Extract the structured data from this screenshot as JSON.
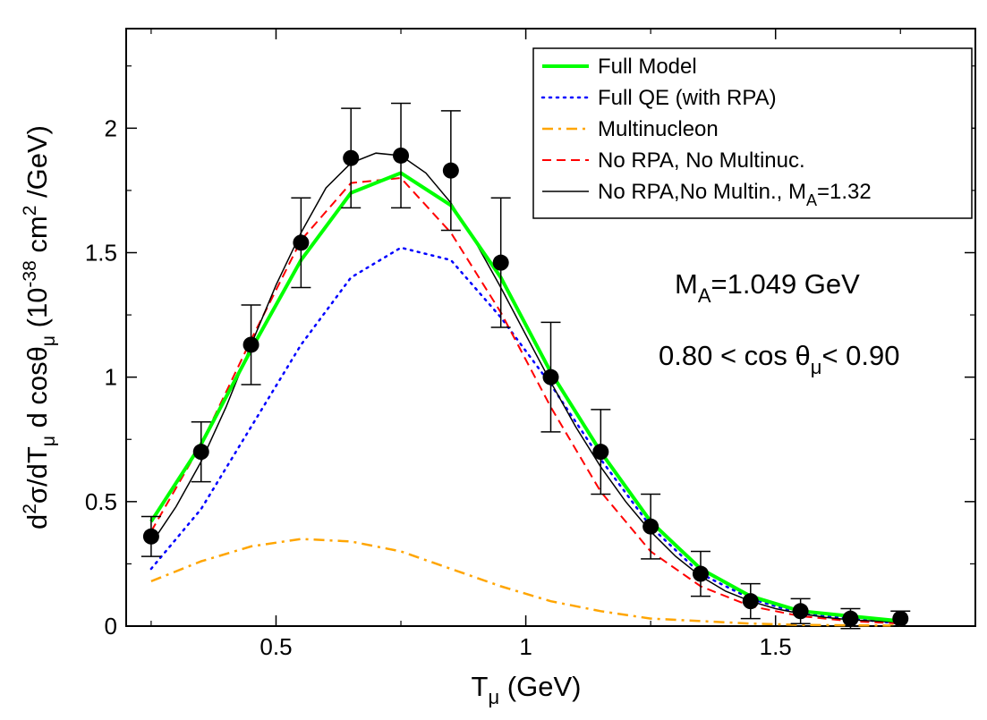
{
  "chart_data": {
    "type": "line",
    "xlabel_main": "T",
    "xlabel_sub": "μ",
    "xlabel_rest": " (GeV)",
    "ylabel": {
      "p1": "d",
      "p1sup": "2",
      "p2": "σ/dT",
      "p2sub": "μ",
      "p3": " d cosθ",
      "p3sub": "μ",
      "p4": " (10",
      "p4sup": "-38",
      "p5": " cm",
      "p5sup": "2",
      "p6": " /GeV)"
    },
    "xlim": [
      0.2,
      1.9
    ],
    "ylim": [
      0,
      2.4
    ],
    "xticks": [
      0.5,
      1,
      1.5
    ],
    "xtick_labels": [
      "0.5",
      "1",
      "1.5"
    ],
    "yticks": [
      0,
      0.5,
      1,
      1.5,
      2
    ],
    "ytick_labels": [
      "0",
      "0.5",
      "1",
      "1.5",
      "2"
    ],
    "grid": false,
    "legend_position": "top-right",
    "annotations": {
      "ma_main": "M",
      "ma_sub": "A",
      "ma_rest": "=1.049 GeV",
      "cos_main": "0.80 < cos θ",
      "cos_sub": "μ",
      "cos_rest": "< 0.90"
    },
    "data_points": {
      "x": [
        0.25,
        0.35,
        0.45,
        0.55,
        0.65,
        0.75,
        0.85,
        0.95,
        1.05,
        1.15,
        1.25,
        1.35,
        1.45,
        1.55,
        1.65,
        1.75
      ],
      "y": [
        0.36,
        0.7,
        1.13,
        1.54,
        1.88,
        1.89,
        1.83,
        1.46,
        1.0,
        0.7,
        0.4,
        0.21,
        0.1,
        0.06,
        0.03,
        0.03
      ],
      "err": [
        0.08,
        0.12,
        0.16,
        0.18,
        0.2,
        0.21,
        0.24,
        0.26,
        0.22,
        0.17,
        0.13,
        0.09,
        0.07,
        0.05,
        0.04,
        0.03
      ]
    },
    "series": [
      {
        "name": "Full Model",
        "color": "#00ff00",
        "style": "solid-thick",
        "x": [
          0.25,
          0.35,
          0.45,
          0.55,
          0.65,
          0.75,
          0.85,
          0.95,
          1.05,
          1.15,
          1.25,
          1.35,
          1.45,
          1.55,
          1.65,
          1.75
        ],
        "y": [
          0.42,
          0.73,
          1.11,
          1.47,
          1.74,
          1.82,
          1.69,
          1.4,
          1.02,
          0.7,
          0.42,
          0.23,
          0.12,
          0.06,
          0.04,
          0.02
        ]
      },
      {
        "name": "Full QE (with RPA)",
        "color": "#0000ff",
        "style": "dotted",
        "x": [
          0.25,
          0.35,
          0.45,
          0.55,
          0.65,
          0.75,
          0.85,
          0.95,
          1.05,
          1.15,
          1.25,
          1.35,
          1.45,
          1.55,
          1.65,
          1.75
        ],
        "y": [
          0.23,
          0.47,
          0.8,
          1.13,
          1.4,
          1.52,
          1.47,
          1.24,
          0.97,
          0.67,
          0.4,
          0.21,
          0.11,
          0.05,
          0.03,
          0.01
        ]
      },
      {
        "name": "Multinucleon",
        "color": "#ffa500",
        "style": "dashdot",
        "x": [
          0.25,
          0.35,
          0.45,
          0.55,
          0.65,
          0.75,
          0.85,
          0.95,
          1.05,
          1.15,
          1.25,
          1.35,
          1.45,
          1.55,
          1.65,
          1.75
        ],
        "y": [
          0.18,
          0.26,
          0.32,
          0.35,
          0.34,
          0.3,
          0.23,
          0.16,
          0.1,
          0.06,
          0.03,
          0.02,
          0.01,
          0.005,
          0.003,
          0.002
        ]
      },
      {
        "name": "No RPA, No Multinuc.",
        "color": "#ff0000",
        "style": "dashed",
        "x": [
          0.25,
          0.35,
          0.45,
          0.55,
          0.65,
          0.75,
          0.85,
          0.95,
          1.05,
          1.15,
          1.25,
          1.35,
          1.45,
          1.55,
          1.65,
          1.75
        ],
        "y": [
          0.38,
          0.73,
          1.15,
          1.55,
          1.78,
          1.8,
          1.58,
          1.26,
          0.88,
          0.54,
          0.3,
          0.16,
          0.08,
          0.04,
          0.02,
          0.01
        ]
      },
      {
        "name": "No RPA,No Multin., M",
        "name_sub": "A",
        "name_rest": "=1.32",
        "color": "#000000",
        "style": "solid-thin",
        "x": [
          0.25,
          0.3,
          0.35,
          0.4,
          0.45,
          0.5,
          0.55,
          0.6,
          0.65,
          0.7,
          0.75,
          0.8,
          0.85,
          0.9,
          0.95,
          1.0,
          1.05,
          1.1,
          1.15,
          1.2,
          1.25,
          1.3,
          1.35,
          1.4,
          1.45,
          1.5,
          1.55,
          1.6,
          1.65,
          1.7,
          1.75
        ],
        "y": [
          0.33,
          0.48,
          0.66,
          0.88,
          1.13,
          1.37,
          1.58,
          1.76,
          1.86,
          1.9,
          1.89,
          1.82,
          1.7,
          1.54,
          1.36,
          1.17,
          0.98,
          0.8,
          0.64,
          0.5,
          0.38,
          0.28,
          0.2,
          0.14,
          0.1,
          0.07,
          0.05,
          0.035,
          0.025,
          0.02,
          0.015
        ]
      }
    ]
  }
}
